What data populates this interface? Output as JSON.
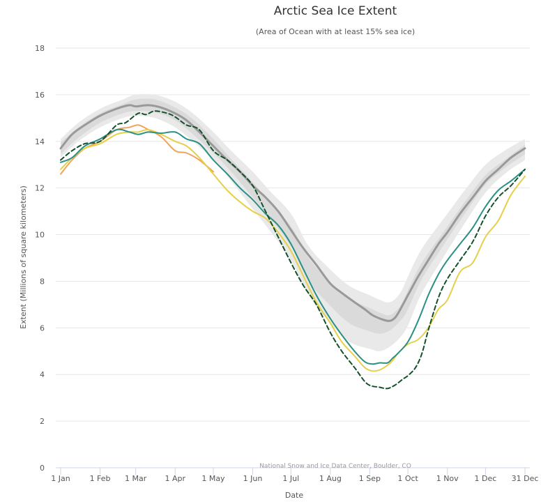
{
  "chart_data": {
    "type": "line",
    "title": "Arctic Sea Ice Extent",
    "subtitle": "(Area of Ocean with at least 15% sea ice)",
    "xlabel": "Date",
    "ylabel": "Extent (Millions of square kilometers)",
    "ylim": [
      0,
      18
    ],
    "xlim": [
      1,
      366
    ],
    "yticks": [
      0,
      2,
      4,
      6,
      8,
      10,
      12,
      14,
      16,
      18
    ],
    "xticks": [
      {
        "label": "1 Jan",
        "day": 1
      },
      {
        "label": "1 Feb",
        "day": 32
      },
      {
        "label": "1 Mar",
        "day": 60
      },
      {
        "label": "1 Apr",
        "day": 91
      },
      {
        "label": "1 May",
        "day": 121
      },
      {
        "label": "1 Jun",
        "day": 152
      },
      {
        "label": "1 Jul",
        "day": 182
      },
      {
        "label": "1 Aug",
        "day": 213
      },
      {
        "label": "1 Sep",
        "day": 244
      },
      {
        "label": "1 Oct",
        "day": 274
      },
      {
        "label": "1 Nov",
        "day": 305
      },
      {
        "label": "1 Dec",
        "day": 335
      },
      {
        "label": "31 Dec",
        "day": 366
      }
    ],
    "credit": "National Snow and Ice Data Center, Boulder, CO",
    "grid": true,
    "bands": [
      {
        "name": "",
        "color": "#e9e9e9",
        "x": [
          1,
          15,
          32,
          50,
          60,
          75,
          91,
          105,
          121,
          135,
          152,
          165,
          182,
          196,
          213,
          228,
          244,
          252,
          260,
          268,
          274,
          285,
          305,
          320,
          335,
          350,
          366
        ],
        "upper": [
          14.1,
          14.8,
          15.4,
          15.8,
          16.0,
          16.0,
          15.7,
          15.2,
          14.4,
          13.6,
          12.7,
          11.9,
          10.9,
          9.5,
          8.5,
          7.8,
          7.4,
          7.2,
          7.1,
          7.5,
          8.2,
          9.4,
          10.9,
          12.0,
          13.0,
          13.6,
          14.1
        ],
        "lower": [
          13.3,
          14.0,
          14.6,
          15.0,
          15.1,
          15.0,
          14.6,
          14.0,
          13.2,
          12.3,
          11.1,
          10.2,
          8.9,
          7.4,
          6.2,
          5.4,
          5.1,
          5.0,
          5.2,
          5.6,
          6.1,
          7.5,
          9.3,
          10.6,
          11.8,
          12.6,
          13.2
        ]
      },
      {
        "name": "",
        "color": "#dadada",
        "x": [
          1,
          15,
          32,
          50,
          60,
          75,
          91,
          105,
          121,
          135,
          152,
          165,
          182,
          196,
          213,
          228,
          244,
          252,
          260,
          268,
          274,
          285,
          305,
          320,
          335,
          350,
          366
        ],
        "upper": [
          13.95,
          14.6,
          15.2,
          15.6,
          15.8,
          15.8,
          15.45,
          14.95,
          14.1,
          13.25,
          12.25,
          11.4,
          10.35,
          9.0,
          7.95,
          7.25,
          6.85,
          6.65,
          6.55,
          6.95,
          7.6,
          8.8,
          10.35,
          11.5,
          12.55,
          13.2,
          13.85
        ],
        "lower": [
          13.45,
          14.15,
          14.8,
          15.2,
          15.3,
          15.25,
          14.9,
          14.3,
          13.5,
          12.7,
          11.6,
          10.75,
          9.5,
          8.0,
          6.95,
          6.2,
          5.85,
          5.75,
          5.9,
          6.3,
          6.8,
          8.1,
          9.8,
          11.0,
          12.15,
          12.85,
          13.45
        ]
      }
    ],
    "series": [
      {
        "name": "",
        "color": "#999999",
        "width": 3,
        "dash": "",
        "x": [
          1,
          10,
          20,
          32,
          45,
          55,
          60,
          70,
          80,
          91,
          100,
          110,
          121,
          132,
          142,
          152,
          162,
          172,
          182,
          192,
          202,
          213,
          222,
          232,
          240,
          246,
          252,
          258,
          262,
          266,
          274,
          282,
          290,
          298,
          305,
          315,
          325,
          335,
          345,
          355,
          366
        ],
        "y": [
          13.7,
          14.3,
          14.7,
          15.1,
          15.4,
          15.55,
          15.5,
          15.55,
          15.45,
          15.2,
          14.9,
          14.4,
          13.8,
          13.2,
          12.7,
          12.1,
          11.6,
          11.0,
          10.2,
          9.4,
          8.7,
          7.9,
          7.5,
          7.1,
          6.8,
          6.55,
          6.4,
          6.3,
          6.35,
          6.6,
          7.4,
          8.2,
          8.9,
          9.6,
          10.1,
          10.9,
          11.6,
          12.3,
          12.8,
          13.3,
          13.7
        ]
      },
      {
        "name": "",
        "color": "#f0a35a",
        "width": 2,
        "dash": "",
        "x": [
          1,
          10,
          20,
          32,
          45,
          55,
          62,
          70,
          80,
          91,
          100,
          110,
          121
        ],
        "y": [
          12.6,
          13.2,
          13.7,
          14.0,
          14.5,
          14.6,
          14.7,
          14.5,
          14.2,
          13.6,
          13.5,
          13.2,
          12.7
        ]
      },
      {
        "name": "",
        "color": "#e6cf4a",
        "width": 2,
        "dash": "",
        "x": [
          1,
          10,
          20,
          32,
          45,
          55,
          62,
          70,
          80,
          91,
          100,
          110,
          121,
          132,
          142,
          152,
          162,
          172,
          182,
          192,
          202,
          213,
          222,
          232,
          240,
          246,
          252,
          258,
          262,
          266,
          274,
          282,
          290,
          298,
          305,
          315,
          325,
          335,
          345,
          355,
          366
        ],
        "y": [
          12.8,
          13.3,
          13.7,
          13.9,
          14.3,
          14.4,
          14.4,
          14.5,
          14.3,
          14.0,
          13.8,
          13.3,
          12.6,
          11.9,
          11.4,
          11.0,
          10.7,
          10.1,
          9.3,
          8.2,
          7.1,
          6.2,
          5.4,
          4.8,
          4.3,
          4.15,
          4.2,
          4.4,
          4.6,
          4.9,
          5.3,
          5.5,
          6.0,
          6.8,
          7.2,
          8.4,
          8.8,
          9.9,
          10.6,
          11.7,
          12.5
        ]
      },
      {
        "name": "",
        "color": "#2a9084",
        "width": 2,
        "dash": "",
        "x": [
          1,
          10,
          20,
          32,
          45,
          55,
          62,
          70,
          80,
          91,
          100,
          110,
          121,
          132,
          142,
          152,
          162,
          172,
          182,
          192,
          202,
          213,
          222,
          232,
          240,
          246,
          252,
          258,
          262,
          266,
          274,
          282,
          290,
          298,
          305,
          315,
          325,
          335,
          345,
          355,
          366
        ],
        "y": [
          13.1,
          13.3,
          13.8,
          14.1,
          14.5,
          14.4,
          14.3,
          14.4,
          14.35,
          14.4,
          14.1,
          13.9,
          13.2,
          12.6,
          12.0,
          11.5,
          10.9,
          10.4,
          9.6,
          8.5,
          7.4,
          6.4,
          5.7,
          5.0,
          4.55,
          4.45,
          4.5,
          4.5,
          4.7,
          4.9,
          5.4,
          6.3,
          7.4,
          8.3,
          8.9,
          9.6,
          10.3,
          11.2,
          11.9,
          12.3,
          12.8
        ]
      },
      {
        "name": "",
        "color": "#13502a",
        "width": 2,
        "dash": "6,4",
        "x": [
          1,
          10,
          20,
          32,
          45,
          52,
          62,
          68,
          75,
          85,
          91,
          100,
          110,
          121,
          132,
          142,
          152,
          162,
          172,
          182,
          192,
          202,
          213,
          222,
          232,
          242,
          252,
          258,
          264,
          270,
          274,
          280,
          285,
          290,
          298,
          305,
          315,
          325,
          335,
          345,
          355,
          366
        ],
        "y": [
          13.2,
          13.6,
          13.9,
          14.0,
          14.7,
          14.8,
          15.2,
          15.15,
          15.3,
          15.2,
          15.05,
          14.7,
          14.5,
          13.6,
          13.2,
          12.7,
          12.1,
          11.0,
          9.9,
          8.8,
          7.8,
          7.0,
          5.8,
          5.0,
          4.3,
          3.6,
          3.45,
          3.4,
          3.55,
          3.8,
          3.95,
          4.3,
          4.9,
          5.9,
          7.3,
          8.1,
          8.9,
          9.7,
          10.8,
          11.6,
          12.1,
          12.8
        ]
      }
    ]
  }
}
